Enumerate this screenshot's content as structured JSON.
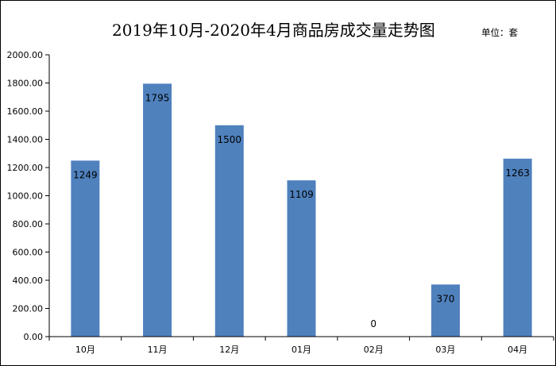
{
  "title": "2019年10月-2020年4月商品房成交量走势图",
  "unit_label": "单位：套",
  "chart_data": {
    "type": "bar",
    "title": "2019年10月-2020年4月商品房成交量走势图",
    "unit": "单位：套",
    "categories": [
      "10月",
      "11月",
      "12月",
      "01月",
      "02月",
      "03月",
      "04月"
    ],
    "values": [
      1249,
      1795,
      1500,
      1109,
      0,
      370,
      1263
    ],
    "data_labels": [
      "1249",
      "1795",
      "1500",
      "1109",
      "0",
      "370",
      "1263"
    ],
    "ylim": [
      0,
      2000
    ],
    "yticks": [
      "0.00",
      "200.00",
      "400.00",
      "600.00",
      "800.00",
      "1000.00",
      "1200.00",
      "1400.00",
      "1600.00",
      "1800.00",
      "2000.00"
    ],
    "xlabel": "",
    "ylabel": "",
    "grid": false,
    "legend": "none",
    "bar_color": "#4f81bd"
  }
}
